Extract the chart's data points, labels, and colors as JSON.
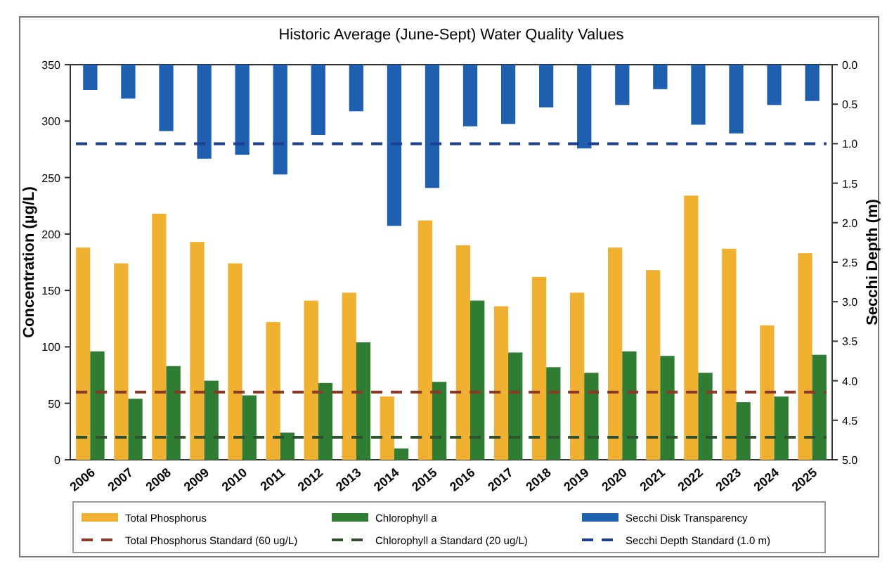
{
  "chart_data": {
    "type": "bar",
    "title": "Historic Average (June-Sept) Water Quality Values",
    "ylabel": "Concentration (µg/L)",
    "y2label": "Secchi Depth (m)",
    "categories": [
      "2006",
      "2007",
      "2008",
      "2009",
      "2010",
      "2011",
      "2012",
      "2013",
      "2014",
      "2015",
      "2016",
      "2017",
      "2018",
      "2019",
      "2020",
      "2021",
      "2022",
      "2023",
      "2024",
      "2025"
    ],
    "series": [
      {
        "name": "Total Phosphorus",
        "color": "#f0b030",
        "values": [
          188,
          174,
          218,
          193,
          174,
          122,
          141,
          148,
          56,
          212,
          190,
          136,
          162,
          148,
          188,
          168,
          234,
          187,
          119,
          183
        ]
      },
      {
        "name": "Chlorophyll a",
        "color": "#2e7d32",
        "values": [
          96,
          54,
          83,
          70,
          57,
          24,
          68,
          104,
          10,
          69,
          141,
          95,
          82,
          77,
          96,
          92,
          77,
          51,
          56,
          93
        ]
      },
      {
        "name": "Secchi Disk Transparency",
        "color": "#1f5fb0",
        "axis": "y2",
        "values": [
          0.32,
          0.43,
          0.84,
          1.19,
          1.14,
          1.39,
          0.89,
          0.59,
          2.04,
          1.56,
          0.78,
          0.75,
          0.54,
          1.06,
          0.51,
          0.31,
          0.76,
          0.87,
          0.51,
          0.46
        ]
      }
    ],
    "ylim": [
      0,
      350
    ],
    "yticks": [
      0,
      50,
      100,
      150,
      200,
      250,
      300,
      350
    ],
    "y2lim": [
      5,
      0
    ],
    "y2ticks": [
      {
        "value": 0,
        "label": "0.0"
      },
      {
        "value": 0.5,
        "label": "0.5"
      },
      {
        "value": 1,
        "label": "1.0"
      },
      {
        "value": 1.5,
        "label": "1.5"
      },
      {
        "value": 2,
        "label": "2.0"
      },
      {
        "value": 2.5,
        "label": "2.5"
      },
      {
        "value": 3,
        "label": "3.0"
      },
      {
        "value": 3.5,
        "label": "3.5"
      },
      {
        "value": 4,
        "label": "4.0"
      },
      {
        "value": 4.5,
        "label": "4.5"
      },
      {
        "value": 5,
        "label": "5.0"
      }
    ],
    "ref_lines": [
      {
        "axis": "y",
        "value": 60,
        "label": "Total Phosphorus Standard (60 ug/L)",
        "color": "#8b3a2a",
        "line_style": "dashed"
      },
      {
        "axis": "y",
        "value": 20,
        "label": "Chlorophyll a Standard (20 ug/L)",
        "color": "#2f4f2f",
        "line_style": "dashed"
      },
      {
        "axis": "y2",
        "value": 1,
        "label": "Secchi Depth Standard (1.0 m)",
        "color": "#1f3f8f",
        "line_style": "dashed"
      }
    ],
    "grid": false,
    "legend": "bottom"
  }
}
